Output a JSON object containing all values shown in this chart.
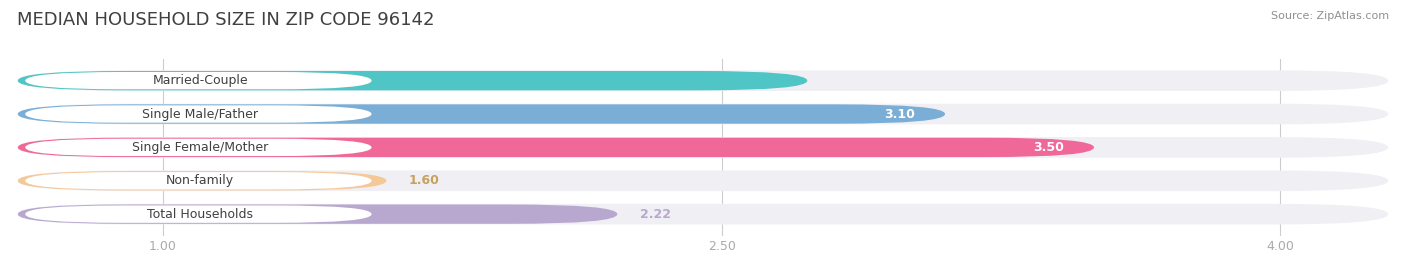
{
  "title": "MEDIAN HOUSEHOLD SIZE IN ZIP CODE 96142",
  "source": "Source: ZipAtlas.com",
  "categories": [
    "Married-Couple",
    "Single Male/Father",
    "Single Female/Mother",
    "Non-family",
    "Total Households"
  ],
  "values": [
    2.73,
    3.1,
    3.5,
    1.6,
    2.22
  ],
  "bar_colors": [
    "#50c5c5",
    "#7aaed6",
    "#f06898",
    "#f5c898",
    "#b8a8d0"
  ],
  "value_colors": [
    "#50c5c5",
    "#ffffff",
    "#ffffff",
    "#c8a060",
    "#b8a8d0"
  ],
  "xmin": 0.6,
  "xmax": 4.3,
  "xticks": [
    1.0,
    2.5,
    4.0
  ],
  "xtick_labels": [
    "1.00",
    "2.50",
    "4.00"
  ],
  "background_color": "#ffffff",
  "bar_bg_color": "#f0f0f4",
  "bar_bg_border_color": "#e0e0e6",
  "title_fontsize": 13,
  "label_fontsize": 9,
  "value_fontsize": 9,
  "source_fontsize": 8,
  "title_color": "#404040",
  "source_color": "#909090"
}
